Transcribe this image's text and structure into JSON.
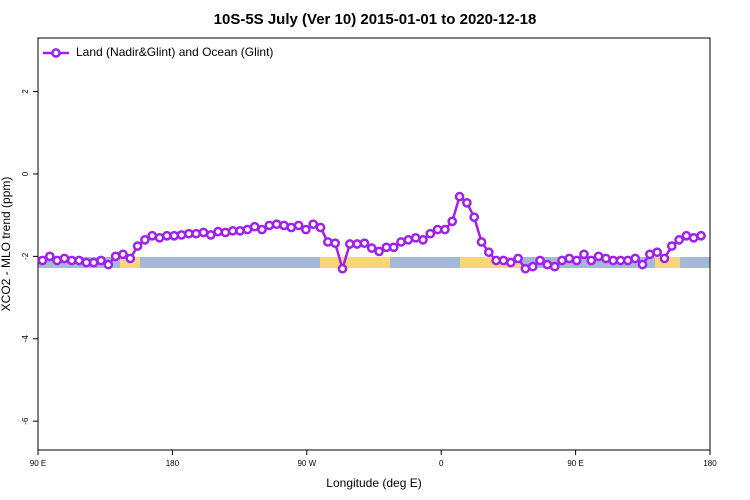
{
  "chart_data": {
    "type": "line",
    "title": "10S-5S July (Ver 10)   2015-01-01 to 2020-12-18",
    "x_label": "Longitude (deg E)",
    "y_label": "XCO2 - MLO trend (ppm)",
    "legend": "topleft",
    "xlim": [
      90,
      540
    ],
    "ylim": [
      -6.7,
      3.3
    ],
    "xticks": [
      {
        "value": 90,
        "label": "90 E"
      },
      {
        "value": 180,
        "label": "180"
      },
      {
        "value": 270,
        "label": "90 W"
      },
      {
        "value": 360,
        "label": "0"
      },
      {
        "value": 450,
        "label": "90 E"
      },
      {
        "value": 540,
        "label": "180"
      }
    ],
    "yticks": [
      -6,
      -4,
      -2,
      0,
      2
    ],
    "x": [
      93,
      97.9,
      102.8,
      107.7,
      112.6,
      117.5,
      122.4,
      127.3,
      132.2,
      137.1,
      142,
      146.9,
      151.8,
      156.7,
      161.6,
      166.5,
      171.4,
      176.3,
      181.2,
      186.1,
      191,
      195.9,
      200.8,
      205.7,
      210.6,
      215.5,
      220.4,
      225.3,
      230.2,
      235.1,
      240,
      244.9,
      249.8,
      254.7,
      259.6,
      264.5,
      269.4,
      274.3,
      279.2,
      284.1,
      289,
      293.9,
      298.8,
      303.7,
      308.6,
      313.5,
      318.4,
      323.3,
      328.2,
      333.1,
      338,
      342.9,
      347.8,
      352.7,
      357.6,
      362.5,
      367.4,
      372.3,
      377.2,
      382.1,
      387,
      391.9,
      396.8,
      401.7,
      406.6,
      411.5,
      416.4,
      421.3,
      426.2,
      431.1,
      436,
      440.9,
      445.8,
      450.7,
      455.6,
      460.5,
      465.4,
      470.3,
      475.2,
      480.1,
      485,
      489.9,
      494.8,
      499.7,
      504.6,
      509.5,
      514.4,
      519.3,
      524.2,
      529.1,
      534
    ],
    "series": [
      {
        "name": "Land (Nadir&Glint) and Ocean (Glint)",
        "color": "#a020f0",
        "values": [
          -2.1,
          -2.0,
          -2.1,
          -2.05,
          -2.1,
          -2.1,
          -2.15,
          -2.15,
          -2.1,
          -2.2,
          -2.0,
          -1.95,
          -2.05,
          -1.75,
          -1.6,
          -1.5,
          -1.55,
          -1.5,
          -1.5,
          -1.48,
          -1.45,
          -1.45,
          -1.42,
          -1.48,
          -1.4,
          -1.42,
          -1.38,
          -1.38,
          -1.35,
          -1.28,
          -1.35,
          -1.25,
          -1.22,
          -1.25,
          -1.3,
          -1.25,
          -1.35,
          -1.22,
          -1.3,
          -1.65,
          -1.68,
          -2.3,
          -1.7,
          -1.7,
          -1.68,
          -1.8,
          -1.88,
          -1.78,
          -1.78,
          -1.65,
          -1.6,
          -1.55,
          -1.6,
          -1.45,
          -1.35,
          -1.35,
          -1.15,
          -0.55,
          -0.7,
          -1.05,
          -1.65,
          -1.9,
          -2.1,
          -2.1,
          -2.15,
          -2.05,
          -2.3,
          -2.25,
          -2.1,
          -2.2,
          -2.25,
          -2.1,
          -2.05,
          -2.1,
          -1.95,
          -2.1,
          -2.0,
          -2.05,
          -2.1,
          -2.1,
          -2.1,
          -2.05,
          -2.2,
          -1.95,
          -1.9,
          -2.05,
          -1.75,
          -1.6,
          -1.5,
          -1.55,
          -1.5
        ]
      }
    ]
  }
}
